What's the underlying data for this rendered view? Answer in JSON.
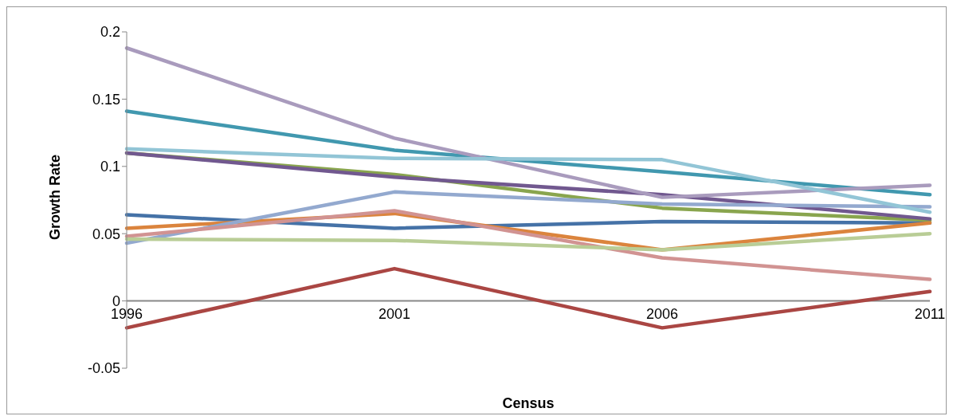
{
  "chart_data": {
    "type": "line",
    "xlabel": "Census",
    "ylabel": "Growth Rate",
    "categories": [
      "1996",
      "2001",
      "2006",
      "2011"
    ],
    "ylim": [
      -0.05,
      0.2
    ],
    "yticks": [
      -0.05,
      0,
      0.05,
      0.1,
      0.15,
      0.2
    ],
    "grid": false,
    "legend": false,
    "series": [
      {
        "color": "#4572a7",
        "values": [
          0.064,
          0.054,
          0.059,
          0.058
        ]
      },
      {
        "color": "#aa4643",
        "values": [
          -0.02,
          0.024,
          -0.02,
          0.007
        ]
      },
      {
        "color": "#89a54e",
        "values": [
          0.11,
          0.094,
          0.069,
          0.06
        ]
      },
      {
        "color": "#71588f",
        "values": [
          0.11,
          0.092,
          0.079,
          0.061
        ]
      },
      {
        "color": "#4198af",
        "values": [
          0.141,
          0.112,
          0.096,
          0.079
        ]
      },
      {
        "color": "#db843d",
        "values": [
          0.054,
          0.065,
          0.038,
          0.058
        ]
      },
      {
        "color": "#93a9cf",
        "values": [
          0.043,
          0.081,
          0.072,
          0.07
        ]
      },
      {
        "color": "#d19392",
        "values": [
          0.048,
          0.067,
          0.032,
          0.016
        ]
      },
      {
        "color": "#b9cd96",
        "values": [
          0.046,
          0.045,
          0.038,
          0.05
        ]
      },
      {
        "color": "#a99bbd",
        "values": [
          0.188,
          0.121,
          0.077,
          0.086
        ]
      },
      {
        "color": "#92c5d6",
        "values": [
          0.113,
          0.106,
          0.105,
          0.066
        ]
      }
    ]
  }
}
